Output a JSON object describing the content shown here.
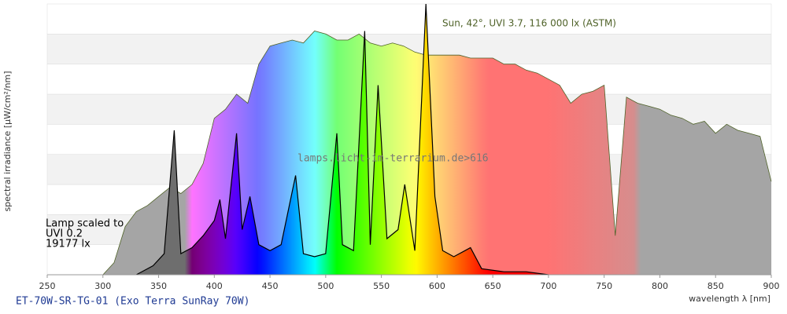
{
  "chart_data": {
    "type": "area",
    "xlabel": "wavelength λ [nm]",
    "ylabel": "spectral irradiance [µW/cm²/nm]",
    "footer": "ET-70W-SR-TG-01 (Exo Terra SunRay 70W)",
    "watermark": "lamps.licht-im-terrarium.de>616",
    "annotation": [
      "Lamp scaled to",
      "UVI 0.2",
      "19177 lx"
    ],
    "xlim": [
      250,
      900
    ],
    "xticks": [
      250,
      300,
      350,
      400,
      450,
      500,
      550,
      600,
      650,
      700,
      750,
      800,
      850,
      900
    ],
    "ylim": [
      0,
      9
    ],
    "series": [
      {
        "name": "Sun, 42°, UVI 3.7, 116 000 lx (ASTM)",
        "color": "#4f6228",
        "x": [
          300,
          310,
          320,
          330,
          340,
          350,
          360,
          370,
          380,
          390,
          400,
          410,
          420,
          430,
          440,
          450,
          460,
          470,
          480,
          490,
          500,
          510,
          520,
          530,
          540,
          550,
          560,
          570,
          580,
          590,
          600,
          610,
          620,
          630,
          640,
          650,
          660,
          670,
          680,
          690,
          700,
          710,
          720,
          730,
          740,
          750,
          760,
          770,
          780,
          790,
          800,
          810,
          820,
          830,
          840,
          850,
          860,
          870,
          880,
          890,
          900
        ],
        "values": [
          0,
          0.4,
          1.6,
          2.1,
          2.3,
          2.6,
          2.9,
          2.7,
          3.0,
          3.7,
          5.2,
          5.5,
          6.0,
          5.7,
          7.0,
          7.6,
          7.7,
          7.8,
          7.7,
          8.1,
          8.0,
          7.8,
          7.8,
          8.0,
          7.7,
          7.6,
          7.7,
          7.6,
          7.4,
          7.3,
          7.3,
          7.3,
          7.3,
          7.2,
          7.2,
          7.2,
          7.0,
          7.0,
          6.8,
          6.7,
          6.5,
          6.3,
          5.7,
          6.0,
          6.1,
          6.3,
          1.3,
          5.9,
          5.7,
          5.6,
          5.5,
          5.3,
          5.2,
          5.0,
          5.1,
          4.7,
          5.0,
          4.8,
          4.7,
          4.6,
          3.1
        ]
      },
      {
        "color": "#000000",
        "x": [
          330,
          345,
          355,
          364,
          370,
          380,
          390,
          400,
          405,
          410,
          420,
          425,
          432,
          440,
          450,
          460,
          473,
          480,
          490,
          500,
          510,
          515,
          525,
          535,
          540,
          547,
          555,
          565,
          571,
          580,
          590,
          598,
          605,
          615,
          625,
          630,
          640,
          660,
          680,
          700
        ],
        "values": [
          0,
          0.3,
          0.7,
          4.8,
          0.7,
          0.9,
          1.3,
          1.8,
          2.5,
          1.2,
          4.7,
          1.5,
          2.6,
          1.0,
          0.8,
          1.0,
          3.3,
          0.7,
          0.6,
          0.7,
          4.7,
          1.0,
          0.8,
          8.1,
          1.0,
          6.3,
          1.2,
          1.5,
          3.0,
          0.8,
          9.0,
          2.6,
          0.8,
          0.6,
          0.8,
          0.9,
          0.2,
          0.1,
          0.1,
          0
        ]
      }
    ]
  }
}
